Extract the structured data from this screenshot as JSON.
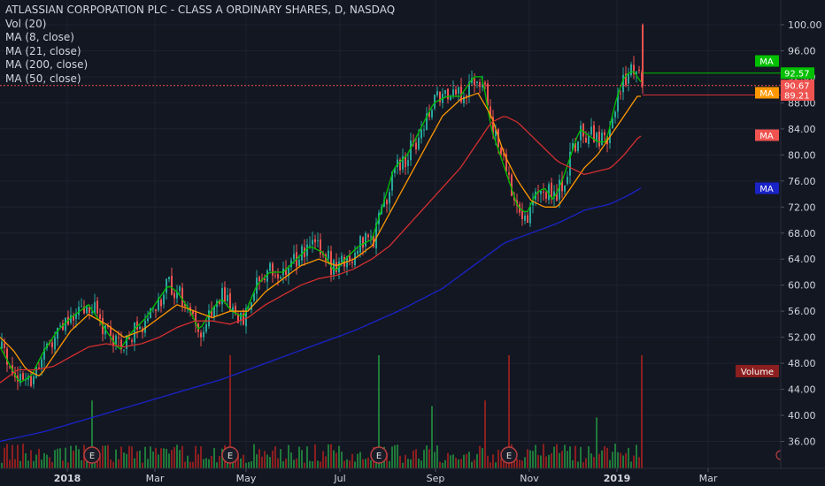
{
  "legend": {
    "title": "ATLASSIAN CORPORATION PLC - CLASS A ORDINARY SHARES, D, NASDAQ",
    "vol": "Vol (20)",
    "ma8": "MA (8, close)",
    "ma21": "MA (21, close)",
    "ma200": "MA (200, close)",
    "ma50": "MA (50, close)"
  },
  "colors": {
    "background": "#131722",
    "up": "#26a69a",
    "down": "#ef5350",
    "ma8": "#00c000",
    "ma21": "#ff9800",
    "ma50": "#d32f2f",
    "ma200": "#1a23c8",
    "vol_up": "#1f7a3a",
    "vol_down": "#8b1f1f",
    "last_price": "#ef5350"
  },
  "price_labels": [
    {
      "value": "92.57",
      "color": "#00c000"
    },
    {
      "value": "90.67",
      "color": "#ef5350"
    },
    {
      "value": "89.21",
      "color": "#ef5350"
    }
  ],
  "ma_tags": [
    {
      "text": "MA",
      "color": "#00c000"
    },
    {
      "text": "MA",
      "color": "#ff9800"
    },
    {
      "text": "MA",
      "color": "#ef5350"
    },
    {
      "text": "MA",
      "color": "#1a23c8"
    }
  ],
  "volume_tag": "Volume",
  "earnings_marker": "E",
  "chart_data": {
    "type": "candlestick",
    "title": "ATLASSIAN CORPORATION PLC - CLASS A ORDINARY SHARES, D, NASDAQ",
    "y_ticks": [
      "100.00",
      "96.00",
      "92.00",
      "88.00",
      "84.00",
      "80.00",
      "76.00",
      "72.00",
      "68.00",
      "64.00",
      "60.00",
      "56.00",
      "52.00",
      "48.00",
      "44.00",
      "40.00",
      "36.00"
    ],
    "ylim": [
      33.5,
      101.5
    ],
    "x_ticks": [
      "2018",
      "Mar",
      "May",
      "Jul",
      "Sep",
      "Nov",
      "2019",
      "Mar"
    ],
    "last_price": 90.67,
    "series": [
      {
        "name": "MA (8, close)",
        "anchors": [
          [
            0,
            50.5
          ],
          [
            10,
            48
          ],
          [
            22,
            45
          ],
          [
            35,
            46
          ],
          [
            50,
            50
          ],
          [
            65,
            53
          ],
          [
            80,
            55
          ],
          [
            100,
            57
          ],
          [
            115,
            54
          ],
          [
            135,
            50
          ],
          [
            150,
            53
          ],
          [
            165,
            55
          ],
          [
            180,
            58
          ],
          [
            190,
            60
          ],
          [
            200,
            59
          ],
          [
            215,
            56
          ],
          [
            225,
            53
          ],
          [
            238,
            56
          ],
          [
            250,
            58
          ],
          [
            262,
            56
          ],
          [
            275,
            55
          ],
          [
            290,
            60
          ],
          [
            305,
            62
          ],
          [
            320,
            62
          ],
          [
            335,
            64
          ],
          [
            350,
            66
          ],
          [
            365,
            65
          ],
          [
            378,
            62
          ],
          [
            390,
            64
          ],
          [
            405,
            66
          ],
          [
            420,
            67
          ],
          [
            432,
            72
          ],
          [
            445,
            78
          ],
          [
            460,
            80
          ],
          [
            475,
            84
          ],
          [
            490,
            88
          ],
          [
            505,
            89
          ],
          [
            520,
            89
          ],
          [
            535,
            92
          ],
          [
            545,
            92
          ],
          [
            555,
            84
          ],
          [
            565,
            80
          ],
          [
            575,
            76
          ],
          [
            585,
            72
          ],
          [
            595,
            71
          ],
          [
            605,
            74
          ],
          [
            615,
            75
          ],
          [
            625,
            73
          ],
          [
            635,
            76
          ],
          [
            645,
            80
          ],
          [
            655,
            84
          ],
          [
            665,
            83
          ],
          [
            675,
            82
          ],
          [
            685,
            82
          ],
          [
            695,
            88
          ],
          [
            705,
            92
          ],
          [
            715,
            93
          ],
          [
            725,
            91
          ]
        ]
      },
      {
        "name": "MA (21, close)",
        "anchors": [
          [
            0,
            52
          ],
          [
            15,
            50
          ],
          [
            30,
            47
          ],
          [
            45,
            46
          ],
          [
            60,
            49
          ],
          [
            80,
            53
          ],
          [
            100,
            55.5
          ],
          [
            120,
            54
          ],
          [
            140,
            52
          ],
          [
            160,
            53
          ],
          [
            180,
            55
          ],
          [
            200,
            57
          ],
          [
            220,
            56
          ],
          [
            240,
            55
          ],
          [
            260,
            56
          ],
          [
            280,
            56
          ],
          [
            300,
            59
          ],
          [
            320,
            61
          ],
          [
            340,
            63
          ],
          [
            360,
            64
          ],
          [
            380,
            63
          ],
          [
            400,
            64
          ],
          [
            420,
            66
          ],
          [
            440,
            71
          ],
          [
            460,
            76
          ],
          [
            480,
            81
          ],
          [
            500,
            86
          ],
          [
            520,
            88.5
          ],
          [
            540,
            89.5
          ],
          [
            555,
            86
          ],
          [
            570,
            80
          ],
          [
            585,
            76
          ],
          [
            600,
            73
          ],
          [
            615,
            72
          ],
          [
            630,
            72
          ],
          [
            645,
            75
          ],
          [
            660,
            78
          ],
          [
            675,
            80
          ],
          [
            690,
            83
          ],
          [
            705,
            86
          ],
          [
            720,
            89
          ],
          [
            725,
            89
          ]
        ]
      },
      {
        "name": "MA (50, close)",
        "anchors": [
          [
            0,
            45
          ],
          [
            20,
            47
          ],
          [
            40,
            47
          ],
          [
            60,
            47.5
          ],
          [
            80,
            49
          ],
          [
            100,
            50.5
          ],
          [
            120,
            51
          ],
          [
            140,
            50.5
          ],
          [
            160,
            51
          ],
          [
            180,
            52
          ],
          [
            200,
            53.5
          ],
          [
            220,
            54.5
          ],
          [
            240,
            54.5
          ],
          [
            260,
            54
          ],
          [
            280,
            55
          ],
          [
            300,
            57
          ],
          [
            320,
            58.5
          ],
          [
            340,
            60
          ],
          [
            360,
            61
          ],
          [
            380,
            61.5
          ],
          [
            400,
            62.5
          ],
          [
            420,
            64
          ],
          [
            440,
            66
          ],
          [
            460,
            69
          ],
          [
            480,
            72
          ],
          [
            500,
            75
          ],
          [
            520,
            78
          ],
          [
            540,
            82
          ],
          [
            555,
            85
          ],
          [
            570,
            86
          ],
          [
            585,
            85
          ],
          [
            600,
            83
          ],
          [
            615,
            81
          ],
          [
            630,
            79
          ],
          [
            645,
            78
          ],
          [
            660,
            77
          ],
          [
            675,
            77.5
          ],
          [
            690,
            78
          ],
          [
            705,
            80
          ],
          [
            720,
            82.5
          ],
          [
            725,
            83
          ]
        ]
      },
      {
        "name": "MA (200, close)",
        "anchors": [
          [
            0,
            36
          ],
          [
            50,
            37.5
          ],
          [
            100,
            39.5
          ],
          [
            150,
            41.5
          ],
          [
            200,
            43.5
          ],
          [
            250,
            45.5
          ],
          [
            300,
            48
          ],
          [
            350,
            50.5
          ],
          [
            400,
            53
          ],
          [
            450,
            56
          ],
          [
            500,
            59.5
          ],
          [
            540,
            63.5
          ],
          [
            570,
            66.5
          ],
          [
            600,
            68
          ],
          [
            630,
            69.5
          ],
          [
            660,
            71.5
          ],
          [
            690,
            72.5
          ],
          [
            710,
            73.8
          ],
          [
            725,
            75
          ]
        ]
      }
    ]
  }
}
